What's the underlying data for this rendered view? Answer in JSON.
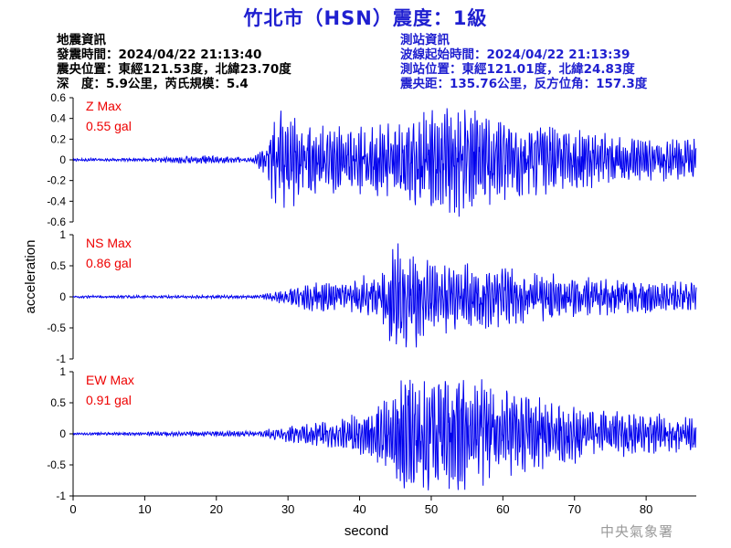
{
  "title": "竹北市（HSN）震度：1級",
  "event_info": {
    "heading": "地震資訊",
    "origin_time": "發震時間：2024/04/22 21:13:40",
    "epicenter": "震央位置：東經121.53度，北緯23.70度",
    "depth_magnitude": "深　度：5.9公里，芮氏規模：5.4"
  },
  "station_info": {
    "heading": "測站資訊",
    "wave_start": "波線起始時間：2024/04/22 21:13:39",
    "location": "測站位置：東經121.01度，北緯24.83度",
    "distance_azimuth": "震央距：135.76公里，反方位角：157.3度"
  },
  "watermark": "中央氣象署",
  "colors": {
    "trace": "#0000ee",
    "title": "#1f1fd0",
    "max_label": "#ee0000"
  },
  "chart_data": [
    {
      "type": "line",
      "component": "Z",
      "max_label": "Z Max",
      "max_value": "0.55 gal",
      "ylim": [
        -0.6,
        0.6
      ],
      "yticks": [
        -0.6,
        -0.4,
        -0.2,
        0,
        0.2,
        0.4,
        0.6
      ],
      "ytick_labels": [
        "-0.6",
        "-0.4",
        "-0.2",
        "0",
        "0.2",
        "0.4",
        "0.6"
      ],
      "xlim": [
        0,
        87
      ],
      "peak": 0.55,
      "envelope": [
        [
          0,
          0.012
        ],
        [
          10,
          0.012
        ],
        [
          15,
          0.03
        ],
        [
          20,
          0.035
        ],
        [
          25,
          0.015
        ],
        [
          26.5,
          0.1
        ],
        [
          28,
          0.38
        ],
        [
          30,
          0.4
        ],
        [
          33,
          0.3
        ],
        [
          38,
          0.25
        ],
        [
          45,
          0.32
        ],
        [
          50,
          0.4
        ],
        [
          53,
          0.45
        ],
        [
          57,
          0.42
        ],
        [
          60,
          0.33
        ],
        [
          66,
          0.27
        ],
        [
          75,
          0.2
        ],
        [
          87,
          0.16
        ]
      ]
    },
    {
      "type": "line",
      "component": "NS",
      "max_label": "NS Max",
      "max_value": "0.86 gal",
      "ylim": [
        -1,
        1
      ],
      "yticks": [
        -1,
        -0.5,
        0,
        0.5,
        1
      ],
      "ytick_labels": [
        "-1",
        "-0.5",
        "0",
        "0.5",
        "1"
      ],
      "xlim": [
        0,
        87
      ],
      "peak": 0.86,
      "envelope": [
        [
          0,
          0.015
        ],
        [
          26,
          0.02
        ],
        [
          28,
          0.06
        ],
        [
          32,
          0.16
        ],
        [
          38,
          0.2
        ],
        [
          43,
          0.3
        ],
        [
          45,
          0.72
        ],
        [
          47,
          0.65
        ],
        [
          50,
          0.45
        ],
        [
          55,
          0.42
        ],
        [
          62,
          0.33
        ],
        [
          70,
          0.26
        ],
        [
          80,
          0.2
        ],
        [
          87,
          0.18
        ]
      ]
    },
    {
      "type": "line",
      "component": "EW",
      "max_label": "EW Max",
      "max_value": "0.91 gal",
      "ylim": [
        -1,
        1
      ],
      "yticks": [
        -1,
        -0.5,
        0,
        0.5,
        1
      ],
      "ytick_labels": [
        "-1",
        "-0.5",
        "0",
        "0.5",
        "1"
      ],
      "xlim": [
        0,
        87
      ],
      "peak": 0.91,
      "envelope": [
        [
          0,
          0.012
        ],
        [
          26,
          0.03
        ],
        [
          30,
          0.1
        ],
        [
          35,
          0.14
        ],
        [
          40,
          0.22
        ],
        [
          44,
          0.45
        ],
        [
          47,
          0.7
        ],
        [
          50,
          0.62
        ],
        [
          53,
          0.72
        ],
        [
          58,
          0.55
        ],
        [
          62,
          0.45
        ],
        [
          68,
          0.33
        ],
        [
          75,
          0.25
        ],
        [
          87,
          0.18
        ]
      ]
    }
  ],
  "x_axis": {
    "label": "second",
    "ticks": [
      0,
      10,
      20,
      30,
      40,
      50,
      60,
      70,
      80
    ],
    "tick_labels": [
      "0",
      "10",
      "20",
      "30",
      "40",
      "50",
      "60",
      "70",
      "80"
    ]
  },
  "y_axis_label": "acceleration"
}
